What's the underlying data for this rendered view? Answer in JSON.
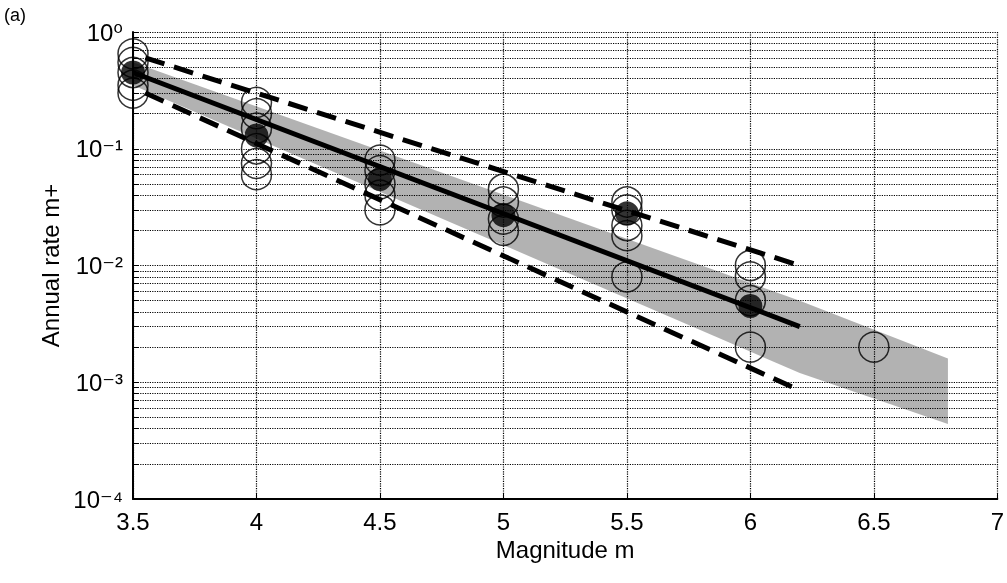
{
  "chart_data": {
    "type": "scatter",
    "xlabel": "Magnitude m",
    "ylabel": "Annual rate m+",
    "annotations": [
      "(a)"
    ],
    "xlim": [
      3.5,
      7
    ],
    "xticks": [
      3.5,
      4,
      4.5,
      5,
      5.5,
      6,
      6.5,
      7
    ],
    "ylim": [
      0.0001,
      1
    ],
    "log": "y",
    "grid": true,
    "marker": "circle",
    "yticks": [
      {
        "value": 0.0001,
        "label": "10⁻⁴"
      },
      {
        "value": 0.0002,
        "label": null
      },
      {
        "value": 0.0003,
        "label": null
      },
      {
        "value": 0.0004,
        "label": null
      },
      {
        "value": 0.0005,
        "label": null
      },
      {
        "value": 0.0006,
        "label": null
      },
      {
        "value": 0.0007,
        "label": null
      },
      {
        "value": 0.0008,
        "label": null
      },
      {
        "value": 0.0009,
        "label": null
      },
      {
        "value": 0.001,
        "label": "10⁻³"
      },
      {
        "value": 0.002,
        "label": null
      },
      {
        "value": 0.003,
        "label": null
      },
      {
        "value": 0.004,
        "label": null
      },
      {
        "value": 0.005,
        "label": null
      },
      {
        "value": 0.006,
        "label": null
      },
      {
        "value": 0.007,
        "label": null
      },
      {
        "value": 0.008,
        "label": null
      },
      {
        "value": 0.009,
        "label": null
      },
      {
        "value": 0.01,
        "label": "10⁻²"
      },
      {
        "value": 0.02,
        "label": null
      },
      {
        "value": 0.03,
        "label": null
      },
      {
        "value": 0.04,
        "label": null
      },
      {
        "value": 0.05,
        "label": null
      },
      {
        "value": 0.06,
        "label": null
      },
      {
        "value": 0.07,
        "label": null
      },
      {
        "value": 0.08,
        "label": null
      },
      {
        "value": 0.09,
        "label": null
      },
      {
        "value": 0.1,
        "label": "10⁻¹"
      },
      {
        "value": 0.2,
        "label": null
      },
      {
        "value": 0.3,
        "label": null
      },
      {
        "value": 0.4,
        "label": null
      },
      {
        "value": 0.5,
        "label": null
      },
      {
        "value": 0.6,
        "label": null
      },
      {
        "value": 0.7,
        "label": null
      },
      {
        "value": 0.8,
        "label": null
      },
      {
        "value": 0.9,
        "label": null
      },
      {
        "value": 1,
        "label": "10⁰"
      }
    ],
    "series": [
      {
        "type": "line",
        "color": "#000000",
        "line_style": "solid",
        "marker": "none",
        "x": [
          3.5,
          6.2,
          6.8
        ],
        "values": [
          0.45,
          0.003,
          null
        ],
        "lower": [
          0.35,
          0.0012,
          0.00044
        ],
        "upper": [
          0.55,
          0.005,
          0.0016
        ]
      },
      {
        "type": "line",
        "color": "#000000",
        "line_style": "dashed",
        "marker": "none",
        "x": [
          3.55,
          6.2
        ],
        "values": [
          0.6,
          0.01
        ]
      },
      {
        "type": "line",
        "color": "#000000",
        "line_style": "dashed",
        "marker": "none",
        "x": [
          3.55,
          6.2
        ],
        "values": [
          0.3,
          0.00085
        ]
      },
      {
        "color": "#000000",
        "x": [
          3.5,
          3.5,
          3.5,
          3.5,
          3.5,
          4,
          4,
          4,
          4,
          4,
          4,
          4.5,
          4.5,
          4.5,
          4.5,
          4.5,
          5,
          5,
          5,
          5,
          5.5,
          5.5,
          5.5,
          5.5,
          5.5,
          6,
          6,
          6,
          6,
          6.5
        ],
        "values": [
          0.65,
          0.55,
          0.45,
          0.35,
          0.3,
          0.25,
          0.2,
          0.15,
          0.1,
          0.075,
          0.06,
          0.08,
          0.065,
          0.05,
          0.04,
          0.03,
          0.045,
          0.035,
          0.025,
          0.02,
          0.035,
          0.03,
          0.022,
          0.018,
          0.008,
          0.01,
          0.008,
          0.005,
          0.002,
          0.002
        ]
      },
      {
        "color": "#000000",
        "x": [
          3.5,
          4,
          4.5,
          5,
          5.5,
          6
        ],
        "values": [
          0.45,
          0.13,
          0.055,
          0.027,
          0.028,
          0.0045
        ]
      }
    ]
  }
}
